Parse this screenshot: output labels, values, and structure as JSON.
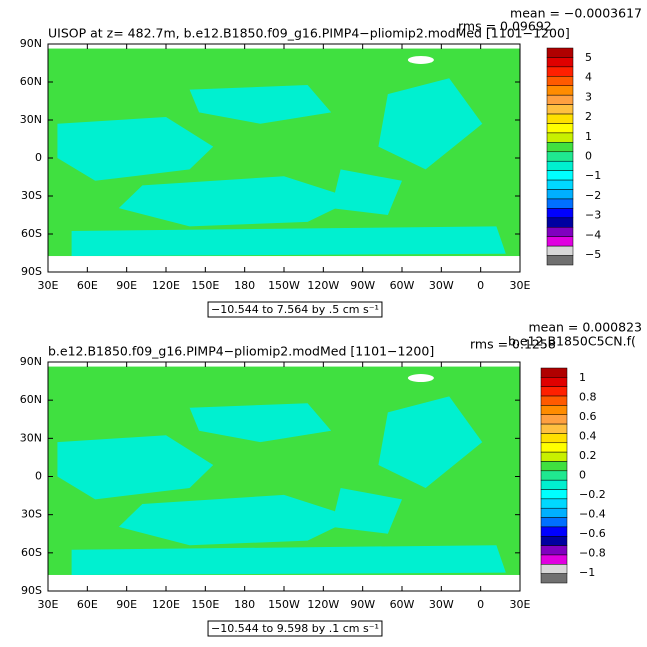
{
  "chart_data": [
    {
      "type": "map",
      "title": "UISOP at z= 482.7m, b.e12.B1850.f09_g16.PIMP4−pliomip2.modMed [1101−1200]",
      "mean": "mean = −0.0003617",
      "rms": "rms = 0.09692",
      "subtitle": "−10.544 to 7.564 by .5 cm s⁻¹",
      "xlim": [
        30,
        390
      ],
      "ylim": [
        -90,
        90
      ],
      "xticks": [
        {
          "value": 30,
          "label": "30E"
        },
        {
          "value": 60,
          "label": "60E"
        },
        {
          "value": 90,
          "label": "90E"
        },
        {
          "value": 120,
          "label": "120E"
        },
        {
          "value": 150,
          "label": "150E"
        },
        {
          "value": 180,
          "label": "180"
        },
        {
          "value": 210,
          "label": "150W"
        },
        {
          "value": 240,
          "label": "120W"
        },
        {
          "value": 270,
          "label": "90W"
        },
        {
          "value": 300,
          "label": "60W"
        },
        {
          "value": 330,
          "label": "30W"
        },
        {
          "value": 360,
          "label": "0"
        },
        {
          "value": 390,
          "label": "30E"
        }
      ],
      "yticks": [
        {
          "value": -90,
          "label": "90S"
        },
        {
          "value": -60,
          "label": "60S"
        },
        {
          "value": -30,
          "label": "30S"
        },
        0,
        {
          "value": 30,
          "label": "30N"
        },
        {
          "value": 60,
          "label": "60N"
        },
        {
          "value": 90,
          "label": "90N"
        }
      ],
      "colorbar": {
        "labels": [
          5,
          4,
          3,
          2,
          1,
          0,
          {
            "value": -1,
            "label": "−1"
          },
          {
            "value": -2,
            "label": "−2"
          },
          {
            "value": -3,
            "label": "−3"
          },
          {
            "value": -4,
            "label": "−4"
          },
          {
            "value": -5,
            "label": "−5"
          }
        ],
        "colors": [
          "#b00000",
          "#e00000",
          "#ff2000",
          "#ff5a00",
          "#ff8c00",
          "#ffa040",
          "#ffc040",
          "#ffe000",
          "#ffff00",
          "#c8f000",
          "#40e040",
          "#20e890",
          "#00f0d0",
          "#00ffff",
          "#00d8ff",
          "#00b0ff",
          "#0070ff",
          "#0000ff",
          "#0000a0",
          "#8000c0",
          "#e000e0",
          "#d8d8d8",
          "#707070"
        ]
      }
    },
    {
      "type": "map",
      "title": "b.e12.B1850.f09_g16.PIMP4−pliomip2.modMed [1101−1200]",
      "mean": "mean = 0.000823",
      "rms": "rms = 0.1258",
      "overlay": "b.e12.B1850C5CN.f(",
      "subtitle": "−10.544 to 9.598 by .1 cm s⁻¹",
      "xlim": [
        30,
        390
      ],
      "ylim": [
        -90,
        90
      ],
      "xticks": [
        {
          "value": 30,
          "label": "30E"
        },
        {
          "value": 60,
          "label": "60E"
        },
        {
          "value": 90,
          "label": "90E"
        },
        {
          "value": 120,
          "label": "120E"
        },
        {
          "value": 150,
          "label": "150E"
        },
        {
          "value": 180,
          "label": "180"
        },
        {
          "value": 210,
          "label": "150W"
        },
        {
          "value": 240,
          "label": "120W"
        },
        {
          "value": 270,
          "label": "90W"
        },
        {
          "value": 300,
          "label": "60W"
        },
        {
          "value": 330,
          "label": "30W"
        },
        {
          "value": 360,
          "label": "0"
        },
        {
          "value": 390,
          "label": "30E"
        }
      ],
      "yticks": [
        {
          "value": -90,
          "label": "90S"
        },
        {
          "value": -60,
          "label": "60S"
        },
        {
          "value": -30,
          "label": "30S"
        },
        0,
        {
          "value": 30,
          "label": "30N"
        },
        {
          "value": 60,
          "label": "60N"
        },
        {
          "value": 90,
          "label": "90N"
        }
      ],
      "colorbar": {
        "labels": [
          1,
          0.8,
          0.6,
          0.4,
          0.2,
          0,
          {
            "value": -0.2,
            "label": "−0.2"
          },
          {
            "value": -0.4,
            "label": "−0.4"
          },
          {
            "value": -0.6,
            "label": "−0.6"
          },
          {
            "value": -0.8,
            "label": "−0.8"
          },
          {
            "value": -1,
            "label": "−1"
          }
        ],
        "colors": [
          "#b00000",
          "#e00000",
          "#ff2000",
          "#ff5a00",
          "#ff8c00",
          "#ffa040",
          "#ffc040",
          "#ffe000",
          "#ffff00",
          "#c8f000",
          "#40e040",
          "#20e890",
          "#00f0d0",
          "#00ffff",
          "#00d8ff",
          "#00b0ff",
          "#0070ff",
          "#0000ff",
          "#0000a0",
          "#8000c0",
          "#e000e0",
          "#d8d8d8",
          "#707070"
        ]
      }
    }
  ]
}
